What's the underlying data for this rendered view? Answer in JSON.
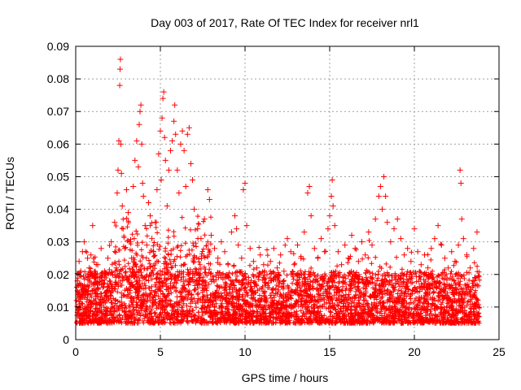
{
  "chart_data": {
    "type": "scatter",
    "title": "Day 003 of 2017, Rate Of TEC Index for receiver nrl1",
    "xlabel": "GPS time / hours",
    "ylabel": "ROTI / TECUs",
    "xlim": [
      0,
      25
    ],
    "ylim": [
      0,
      0.09
    ],
    "x_ticks": [
      0,
      5,
      10,
      15,
      20,
      25
    ],
    "x_tick_labels": [
      "0",
      "5",
      "10",
      "15",
      "20",
      "25"
    ],
    "y_ticks": [
      0,
      0.01,
      0.02,
      0.03,
      0.04,
      0.05,
      0.06,
      0.07,
      0.08,
      0.09
    ],
    "y_tick_labels": [
      "0",
      "0.01",
      "0.02",
      "0.03",
      "0.04",
      "0.05",
      "0.06",
      "0.07",
      "0.08",
      "0.09"
    ],
    "grid": true,
    "marker": "plus",
    "color": "#ff0000",
    "points": [
      [
        0.05,
        0.012
      ],
      [
        0.1,
        0.018
      ],
      [
        0.15,
        0.009
      ],
      [
        0.2,
        0.024
      ],
      [
        0.25,
        0.014
      ],
      [
        0.3,
        0.021
      ],
      [
        0.35,
        0.011
      ],
      [
        0.4,
        0.027
      ],
      [
        0.45,
        0.016
      ],
      [
        0.5,
        0.03
      ],
      [
        0.55,
        0.013
      ],
      [
        0.6,
        0.019
      ],
      [
        0.65,
        0.008
      ],
      [
        0.7,
        0.025
      ],
      [
        0.75,
        0.015
      ],
      [
        0.8,
        0.022
      ],
      [
        0.85,
        0.01
      ],
      [
        0.9,
        0.026
      ],
      [
        0.95,
        0.017
      ],
      [
        1.0,
        0.035
      ],
      [
        1.05,
        0.012
      ],
      [
        1.1,
        0.02
      ],
      [
        1.2,
        0.014
      ],
      [
        1.3,
        0.023
      ],
      [
        1.4,
        0.011
      ],
      [
        1.5,
        0.028
      ],
      [
        1.6,
        0.016
      ],
      [
        1.7,
        0.021
      ],
      [
        1.8,
        0.013
      ],
      [
        1.9,
        0.025
      ],
      [
        2.0,
        0.018
      ],
      [
        2.1,
        0.03
      ],
      [
        2.2,
        0.015
      ],
      [
        2.3,
        0.036
      ],
      [
        2.4,
        0.022
      ],
      [
        2.45,
        0.045
      ],
      [
        2.5,
        0.052
      ],
      [
        2.55,
        0.061
      ],
      [
        2.6,
        0.078
      ],
      [
        2.62,
        0.083
      ],
      [
        2.64,
        0.086
      ],
      [
        2.66,
        0.06
      ],
      [
        2.7,
        0.051
      ],
      [
        2.75,
        0.041
      ],
      [
        2.8,
        0.034
      ],
      [
        2.9,
        0.028
      ],
      [
        3.0,
        0.046
      ],
      [
        3.1,
        0.039
      ],
      [
        3.2,
        0.03
      ],
      [
        3.3,
        0.025
      ],
      [
        3.4,
        0.047
      ],
      [
        3.5,
        0.055
      ],
      [
        3.6,
        0.061
      ],
      [
        3.7,
        0.053
      ],
      [
        3.75,
        0.066
      ],
      [
        3.8,
        0.07
      ],
      [
        3.85,
        0.072
      ],
      [
        3.9,
        0.06
      ],
      [
        3.95,
        0.048
      ],
      [
        4.0,
        0.044
      ],
      [
        4.1,
        0.035
      ],
      [
        4.2,
        0.029
      ],
      [
        4.3,
        0.042
      ],
      [
        4.4,
        0.038
      ],
      [
        4.5,
        0.031
      ],
      [
        4.6,
        0.027
      ],
      [
        4.7,
        0.036
      ],
      [
        4.8,
        0.046
      ],
      [
        4.9,
        0.057
      ],
      [
        5.0,
        0.064
      ],
      [
        5.05,
        0.049
      ],
      [
        5.1,
        0.068
      ],
      [
        5.15,
        0.074
      ],
      [
        5.2,
        0.076
      ],
      [
        5.25,
        0.062
      ],
      [
        5.3,
        0.055
      ],
      [
        5.4,
        0.041
      ],
      [
        5.5,
        0.052
      ],
      [
        5.6,
        0.058
      ],
      [
        5.7,
        0.061
      ],
      [
        5.8,
        0.067
      ],
      [
        5.85,
        0.072
      ],
      [
        5.9,
        0.063
      ],
      [
        6.0,
        0.052
      ],
      [
        6.1,
        0.045
      ],
      [
        6.2,
        0.06
      ],
      [
        6.3,
        0.064
      ],
      [
        6.4,
        0.058
      ],
      [
        6.5,
        0.047
      ],
      [
        6.6,
        0.063
      ],
      [
        6.7,
        0.065
      ],
      [
        6.8,
        0.054
      ],
      [
        6.9,
        0.049
      ],
      [
        7.0,
        0.04
      ],
      [
        7.2,
        0.034
      ],
      [
        7.4,
        0.031
      ],
      [
        7.6,
        0.037
      ],
      [
        7.8,
        0.046
      ],
      [
        7.9,
        0.043
      ],
      [
        8.0,
        0.032
      ],
      [
        8.2,
        0.028
      ],
      [
        8.4,
        0.025
      ],
      [
        8.6,
        0.03
      ],
      [
        8.8,
        0.027
      ],
      [
        9.0,
        0.023
      ],
      [
        9.2,
        0.033
      ],
      [
        9.4,
        0.038
      ],
      [
        9.5,
        0.034
      ],
      [
        9.6,
        0.029
      ],
      [
        9.8,
        0.025
      ],
      [
        9.9,
        0.046
      ],
      [
        10.0,
        0.048
      ],
      [
        10.1,
        0.035
      ],
      [
        10.3,
        0.028
      ],
      [
        10.5,
        0.024
      ],
      [
        10.7,
        0.022
      ],
      [
        10.9,
        0.026
      ],
      [
        11.1,
        0.023
      ],
      [
        11.3,
        0.02
      ],
      [
        11.5,
        0.024
      ],
      [
        11.7,
        0.028
      ],
      [
        11.9,
        0.022
      ],
      [
        12.1,
        0.026
      ],
      [
        12.3,
        0.021
      ],
      [
        12.5,
        0.031
      ],
      [
        12.7,
        0.027
      ],
      [
        12.9,
        0.023
      ],
      [
        13.1,
        0.029
      ],
      [
        13.3,
        0.025
      ],
      [
        13.5,
        0.033
      ],
      [
        13.7,
        0.045
      ],
      [
        13.8,
        0.047
      ],
      [
        13.9,
        0.038
      ],
      [
        14.1,
        0.028
      ],
      [
        14.3,
        0.025
      ],
      [
        14.5,
        0.031
      ],
      [
        14.7,
        0.027
      ],
      [
        14.9,
        0.034
      ],
      [
        15.0,
        0.038
      ],
      [
        15.1,
        0.044
      ],
      [
        15.15,
        0.049
      ],
      [
        15.2,
        0.041
      ],
      [
        15.3,
        0.035
      ],
      [
        15.5,
        0.027
      ],
      [
        15.7,
        0.023
      ],
      [
        15.9,
        0.029
      ],
      [
        16.1,
        0.025
      ],
      [
        16.3,
        0.032
      ],
      [
        16.5,
        0.028
      ],
      [
        16.7,
        0.024
      ],
      [
        16.9,
        0.03
      ],
      [
        17.1,
        0.026
      ],
      [
        17.3,
        0.033
      ],
      [
        17.5,
        0.029
      ],
      [
        17.7,
        0.037
      ],
      [
        17.9,
        0.044
      ],
      [
        18.0,
        0.047
      ],
      [
        18.1,
        0.04
      ],
      [
        18.2,
        0.05
      ],
      [
        18.3,
        0.044
      ],
      [
        18.4,
        0.036
      ],
      [
        18.6,
        0.03
      ],
      [
        18.8,
        0.034
      ],
      [
        19.0,
        0.037
      ],
      [
        19.2,
        0.031
      ],
      [
        19.4,
        0.026
      ],
      [
        19.6,
        0.028
      ],
      [
        19.8,
        0.024
      ],
      [
        20.0,
        0.034
      ],
      [
        20.2,
        0.027
      ],
      [
        20.4,
        0.023
      ],
      [
        20.6,
        0.026
      ],
      [
        20.8,
        0.022
      ],
      [
        21.0,
        0.028
      ],
      [
        21.2,
        0.031
      ],
      [
        21.4,
        0.035
      ],
      [
        21.6,
        0.029
      ],
      [
        21.8,
        0.025
      ],
      [
        22.0,
        0.022
      ],
      [
        22.2,
        0.027
      ],
      [
        22.4,
        0.024
      ],
      [
        22.6,
        0.029
      ],
      [
        22.7,
        0.052
      ],
      [
        22.75,
        0.048
      ],
      [
        22.8,
        0.037
      ],
      [
        22.9,
        0.031
      ],
      [
        23.1,
        0.026
      ],
      [
        23.3,
        0.022
      ],
      [
        23.5,
        0.028
      ],
      [
        23.7,
        0.033
      ]
    ]
  }
}
